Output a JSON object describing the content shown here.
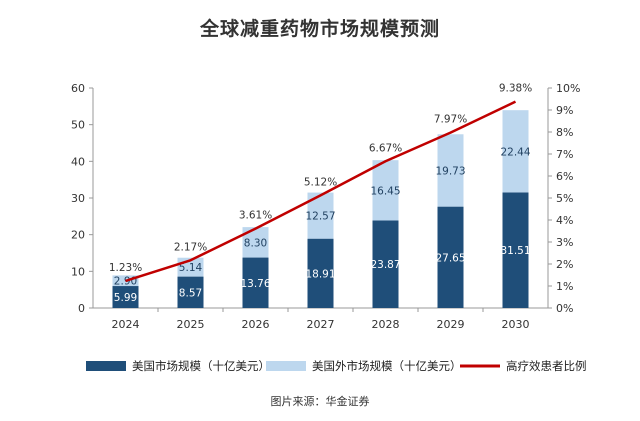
{
  "chart_data": {
    "type": "bar",
    "title": "全球减重药物市场规模预测",
    "categories": [
      "2024",
      "2025",
      "2026",
      "2027",
      "2028",
      "2029",
      "2030"
    ],
    "series": [
      {
        "name": "美国市场规模（十亿美元）",
        "kind": "bar",
        "stack": "market",
        "color": "#1f4e79",
        "values": [
          5.99,
          8.57,
          13.76,
          18.91,
          23.87,
          27.65,
          31.51
        ],
        "labels": [
          "5.99",
          "8.57",
          "13.76",
          "18.91",
          "23.87",
          "27.65",
          "31.51"
        ]
      },
      {
        "name": "美国外市场规模（十亿美元）",
        "kind": "bar",
        "stack": "market",
        "color": "#bdd7ee",
        "values": [
          2.9,
          5.14,
          8.3,
          12.57,
          16.45,
          19.73,
          22.44
        ],
        "labels": [
          "2.90",
          "5.14",
          "8.30",
          "12.57",
          "16.45",
          "19.73",
          "22.44"
        ]
      },
      {
        "name": "高疗效患者比例",
        "kind": "line",
        "axis": "right",
        "color": "#c00000",
        "values": [
          1.23,
          2.17,
          3.61,
          5.12,
          6.67,
          7.97,
          9.38
        ],
        "labels": [
          "1.23%",
          "2.17%",
          "3.61%",
          "5.12%",
          "6.67%",
          "7.97%",
          "9.38%"
        ]
      }
    ],
    "y_left": {
      "ylim": [
        0,
        60
      ],
      "ticks": [
        "0",
        "10",
        "20",
        "30",
        "40",
        "50",
        "60"
      ]
    },
    "y_right": {
      "ylim": [
        0,
        10
      ],
      "ticks": [
        "0%",
        "1%",
        "2%",
        "3%",
        "4%",
        "5%",
        "6%",
        "7%",
        "8%",
        "9%",
        "10%"
      ]
    },
    "grid": false,
    "legend": "bottom"
  },
  "source_note": "图片来源：华金证券"
}
